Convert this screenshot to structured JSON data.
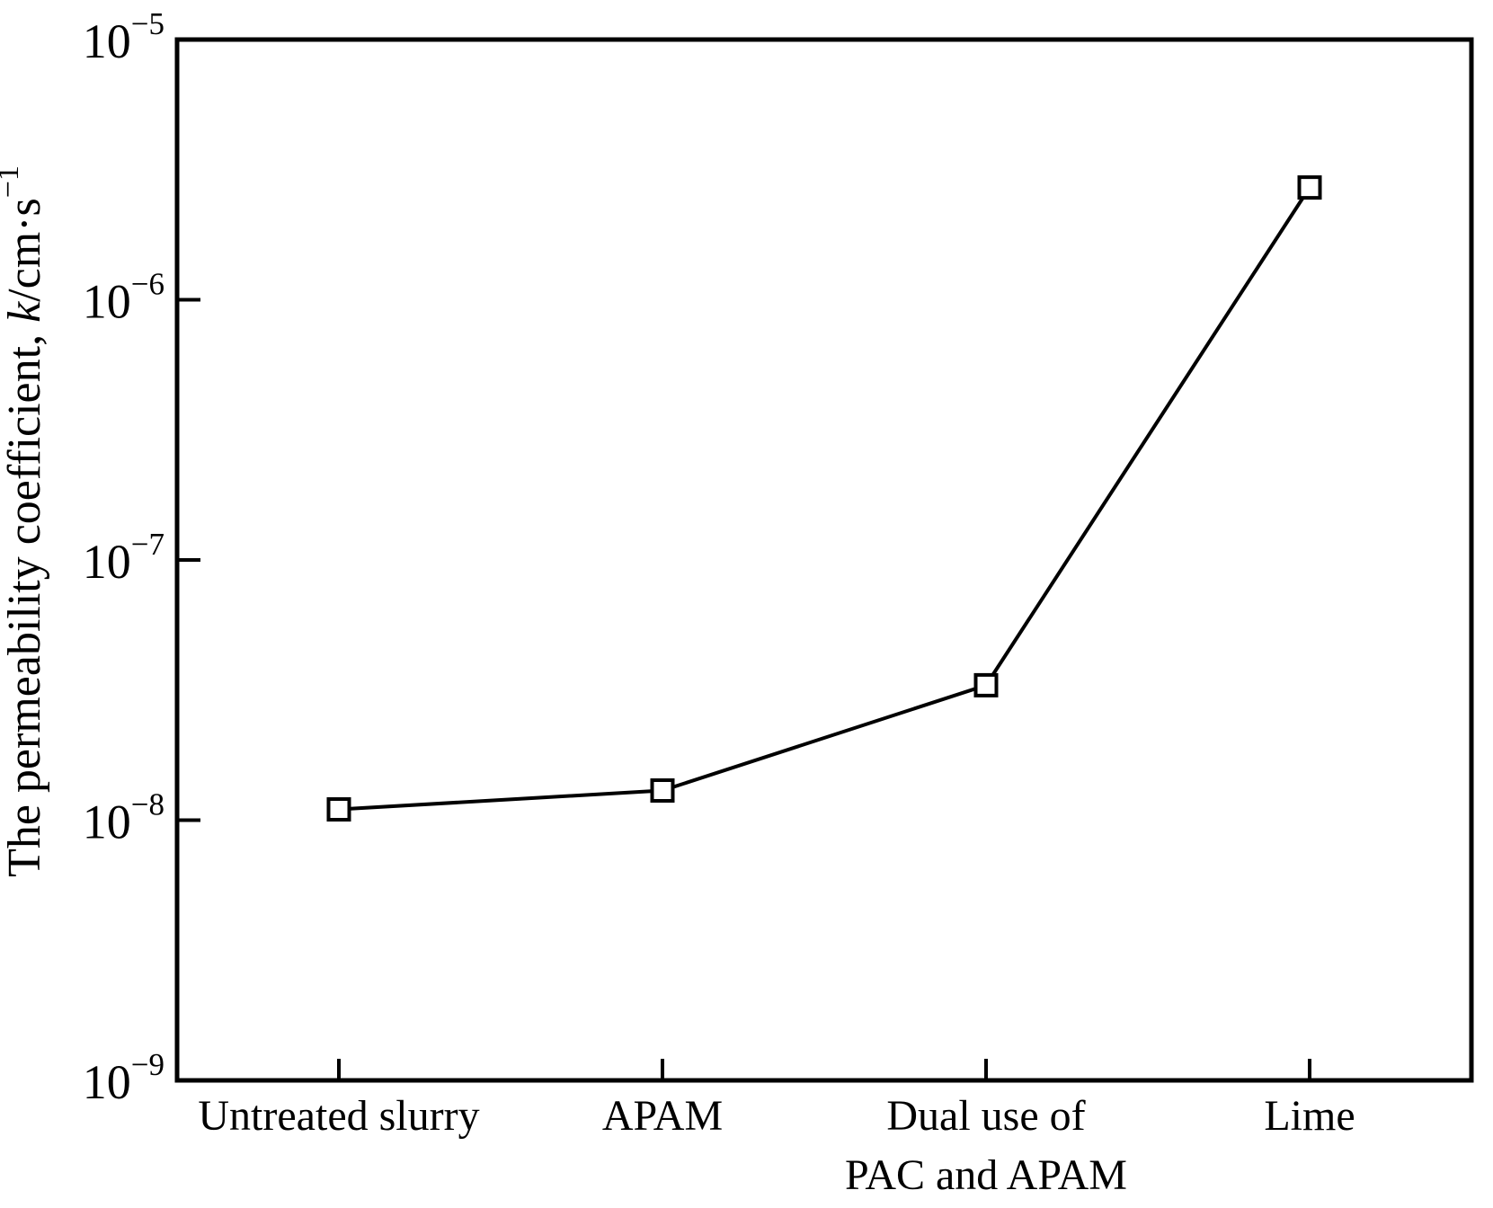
{
  "chart_data": {
    "type": "line",
    "title": "",
    "categories": [
      "Untreated slurry",
      "APAM",
      "Dual use of PAC and APAM",
      "Lime"
    ],
    "category_label_lines": [
      [
        "Untreated slurry"
      ],
      [
        "APAM"
      ],
      [
        "Dual use of",
        "PAC and APAM"
      ],
      [
        "Lime"
      ]
    ],
    "series": [
      {
        "name": "permeability-coefficient",
        "values": [
          1.1e-08,
          1.3e-08,
          3.3e-08,
          2.7e-06
        ]
      }
    ],
    "xlabel": "",
    "ylabel": "The permeability coefficient, k/cm·s⁻¹",
    "ylabel_parts": [
      {
        "text": "The permeability coefficient, ",
        "style": "normal"
      },
      {
        "text": "k",
        "style": "italic"
      },
      {
        "text": "/cm·s",
        "style": "normal"
      },
      {
        "text": "−1",
        "style": "superscript"
      }
    ],
    "yscale": "log",
    "ylim": [
      1e-09,
      1e-05
    ],
    "y_tick_exponents": [
      -5,
      -6,
      -7,
      -8,
      -9
    ],
    "y_tick_base": "10",
    "y_ticks_with_mark": [
      -6,
      -7,
      -8
    ],
    "grid": false,
    "legend_position": "none",
    "marker": "open-square",
    "colors": {
      "line": "#000000",
      "marker_stroke": "#000000",
      "marker_fill": "#ffffff",
      "axis": "#000000",
      "text": "#000000",
      "background": "#ffffff"
    }
  }
}
